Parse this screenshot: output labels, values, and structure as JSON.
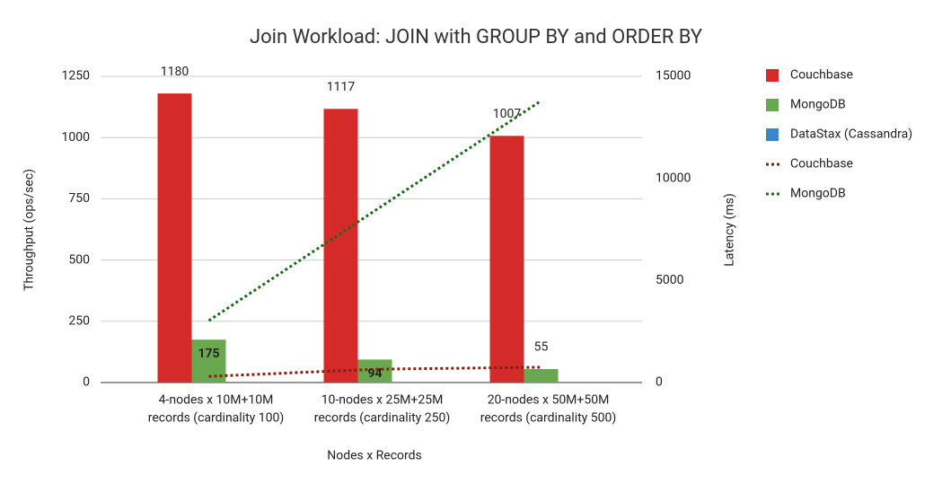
{
  "chart_data": {
    "type": "bar",
    "title": "Join Workload: JOIN with GROUP BY and ORDER BY",
    "x_label": "Nodes x Records",
    "y_label": "Throughput (ops/sec)",
    "y2_label": "Latency (ms)",
    "categories": [
      [
        "4-nodes x 10M+10M",
        "records (cardinality 100)"
      ],
      [
        "10-nodes x 25M+25M",
        "records (cardinality 250)"
      ],
      [
        "20-nodes x 50M+50M",
        "records (cardinality 500)"
      ]
    ],
    "ylim": [
      0,
      1250
    ],
    "yticks": [
      0,
      250,
      500,
      750,
      1000,
      1250
    ],
    "y2lim": [
      0,
      15000
    ],
    "y2ticks": [
      0,
      5000,
      10000,
      15000
    ],
    "grid": true,
    "legend": "right",
    "series": [
      {
        "name": "Couchbase",
        "type": "bar",
        "color": "#d42a2a",
        "values": [
          1180,
          1117,
          1007
        ],
        "label_colors": [
          "#d42a2a",
          "#d42a2a",
          "#d42a2a"
        ]
      },
      {
        "name": "MongoDB",
        "type": "bar",
        "color": "#6aa84f",
        "values": [
          175,
          94,
          55
        ],
        "label_colors": [
          "#000000",
          "#000000",
          "#6aa84f"
        ]
      },
      {
        "name": "DataStax (Cassandra)",
        "type": "bar",
        "color": "#3d85c6",
        "values": [
          null,
          null,
          null
        ]
      },
      {
        "name": "Couchbase",
        "type": "line",
        "axis": "y2",
        "color": "#85200c",
        "values": [
          300,
          650,
          750
        ]
      },
      {
        "name": "MongoDB",
        "type": "line",
        "axis": "y2",
        "color": "#1e6b1e",
        "values": [
          3030,
          8420,
          13800
        ]
      }
    ]
  }
}
